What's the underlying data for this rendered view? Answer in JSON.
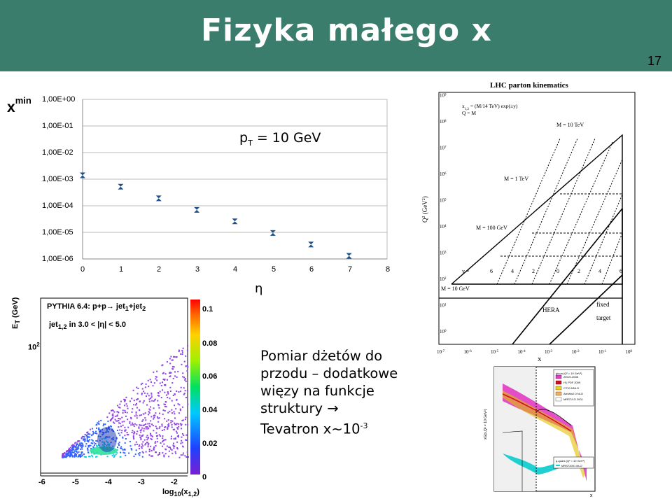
{
  "header": {
    "title": "Fizyka małego x",
    "page_number": "17",
    "bg": "#3a7d6c"
  },
  "chart_data": [
    {
      "type": "scatter",
      "ylabel_main": "x",
      "ylabel_sup": "min",
      "xlabel": "η",
      "annotation_main": "p",
      "annotation_sub": "T",
      "annotation_rest": " = 10 GeV",
      "x_ticks": [
        "0",
        "1",
        "2",
        "3",
        "4",
        "5",
        "6",
        "7",
        "8"
      ],
      "y_ticks": [
        "1,00E+00",
        "1,00E-01",
        "1,00E-02",
        "1,00E-03",
        "1,00E-04",
        "1,00E-05",
        "1,00E-06"
      ],
      "xlim": [
        0,
        8
      ],
      "ylim_log10": [
        -6,
        0
      ],
      "log_y": true,
      "grid": true,
      "marker_color": "#1f4e8c",
      "x": [
        0,
        1,
        2,
        3,
        4,
        5,
        6,
        7
      ],
      "y": [
        0.0014,
        0.00052,
        0.00019,
        7e-05,
        2.6e-05,
        9.5e-06,
        3.5e-06,
        1.3e-06
      ]
    },
    {
      "type": "heatmap",
      "title_line1": "PYTHIA 6.4: p+p→ jet",
      "title_line1_sub1": "1",
      "title_line1_mid": "+jet",
      "title_line1_sub2": "2",
      "title_line2": "jet",
      "title_line2_sub": "1,2",
      "title_line2_rest": " in 3.0 < |η| < 5.0",
      "ylabel": "E",
      "ylabel_sub": "T",
      "ylabel_rest": " (GeV)",
      "y_tick": "10",
      "y_tick_sup": "2",
      "xlabel": "log",
      "xlabel_sub": "10",
      "xlabel_rest": "(x",
      "xlabel_sub2": "1,2",
      "xlabel_end": ")",
      "x_ticks": [
        "-6",
        "-5",
        "-4",
        "-3",
        "-2"
      ],
      "colorbar_ticks": [
        "0.1",
        "0.08",
        "0.06",
        "0.04",
        "0.02",
        "0"
      ]
    },
    {
      "type": "diagram",
      "title": "LHC parton kinematics",
      "legend_line1": "x",
      "legend_line1_sub": "1,2",
      "legend_line1_rest": " = (M/14 TeV) exp(±y)",
      "legend_line2": "Q = M",
      "labels": [
        "M = 10 TeV",
        "M = 1 TeV",
        "M = 100 GeV",
        "M = 10 GeV",
        "HERA",
        "fixed",
        "target"
      ],
      "y_label": "y =",
      "y_values": [
        "6",
        "4",
        "2",
        "0",
        "2",
        "4",
        "6"
      ],
      "ylabel": "Q",
      "ylabel_sup": "2",
      "ylabel_rest": "  (GeV",
      "ylabel_sup2": "2",
      "ylabel_end": ")",
      "xlabel": "x",
      "x_ticks": [
        "10",
        "10",
        "10",
        "10",
        "10",
        "10",
        "10",
        "10"
      ],
      "x_ticks_sup": [
        "-7",
        "-6",
        "-5",
        "-4",
        "-3",
        "-2",
        "-1",
        "0"
      ],
      "y_ticks": [
        "10",
        "10",
        "10",
        "10",
        "10",
        "10",
        "10",
        "10",
        "10",
        "10"
      ],
      "y_ticks_sup": [
        "0",
        "1",
        "2",
        "3",
        "4",
        "5",
        "6",
        "7",
        "8",
        "9"
      ]
    },
    {
      "type": "line",
      "ylabel": "xG(x,Q² = 10 GeV²)",
      "xlabel": "x",
      "legend_title": "gluon (Q² = 10 GeV²)",
      "legend": [
        "ZEUS-2008",
        "H1 PDF 2009",
        "CT10.NNLO",
        "Alekhin2.0 NLO",
        "MRST/LO 2001"
      ],
      "legend_colors": [
        "#e040c0",
        "#d01020",
        "#f0d020",
        "#f0b060",
        "#ffffff"
      ],
      "inset_title": "q-quark (Q² = 10 GeV²)",
      "inset_legend": [
        "MRST2001 NLO"
      ]
    }
  ],
  "note": {
    "line1": "Pomiar dżetów do",
    "line2": "przodu – dodatkowe",
    "line3": "więzy na funkcje",
    "line4": "struktury →",
    "line5": "Tevatron x~10",
    "line5_sup": "-3"
  }
}
